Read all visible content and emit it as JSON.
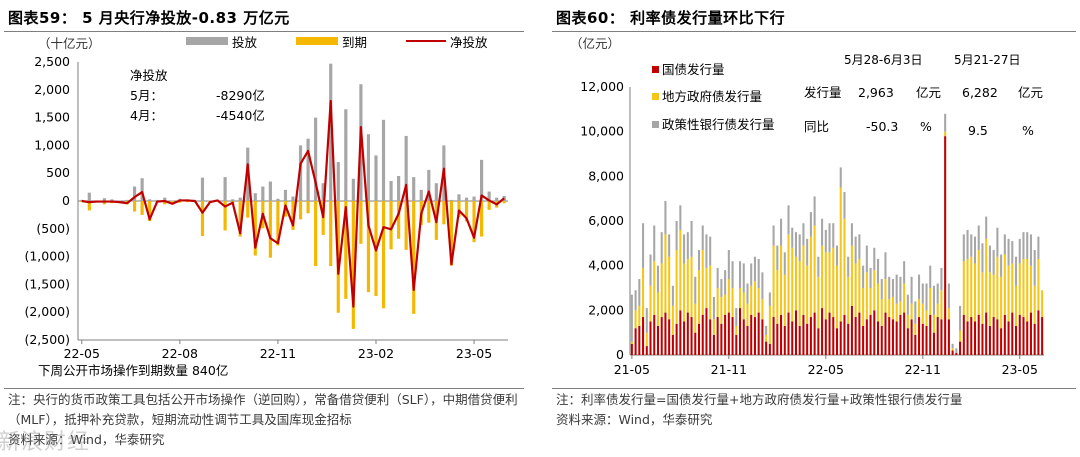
{
  "left": {
    "title": "图表59： 5 月央行净投放-0.83 万亿元",
    "unit": "（十亿元）",
    "legend": [
      {
        "label": "投放",
        "color": "#a6a6a6",
        "kind": "bar"
      },
      {
        "label": "到期",
        "color": "#f5b800",
        "kind": "bar"
      },
      {
        "label": "净投放",
        "color": "#c00000",
        "kind": "line"
      }
    ],
    "annotation": {
      "heading": "净投放",
      "rows": [
        {
          "k": "5月：",
          "v": "-8290亿"
        },
        {
          "k": "4月：",
          "v": "-4540亿"
        }
      ]
    },
    "bottom_note": "下周公开市场操作到期数量 840亿",
    "footnote": "注：央行的货币政策工具包括公开市场操作（逆回购），常备借贷便利（SLF），中期借贷便利（MLF），抵押补充贷款，短期流动性调节工具及国库现金招标",
    "source": "资料来源：Wind，华泰研究"
  },
  "right": {
    "title": "图表60： 利率债发行量环比下行",
    "unit": "（亿元）",
    "legend": [
      {
        "label": "国债发行量",
        "color": "#c00000"
      },
      {
        "label": "地方政府债发行量",
        "color": "#f5c518"
      },
      {
        "label": "政策性银行债发行量",
        "color": "#a6a6a6"
      }
    ],
    "info_table": {
      "headers": [
        "5月28-6月3日",
        "5月21-27日"
      ],
      "rows": [
        {
          "label": "发行量",
          "a": "2,963",
          "unit_a": "亿元",
          "b": "6,282",
          "unit_b": "亿元"
        },
        {
          "label": "同比",
          "a": "-50.3",
          "unit_a": "%",
          "b": "9.5",
          "unit_b": "%"
        }
      ]
    },
    "footnote": "注：利率债发行量=国债发行量+地方政府债发行量+政策性银行债发行量",
    "source": "资料来源：Wind，华泰研究"
  },
  "watermark": "新浪财经",
  "chart_data": [
    {
      "type": "bar",
      "id": "pboc-net-injection",
      "title": "图表59： 5 月央行净投放-0.83 万亿元",
      "ylabel": "（十亿元）",
      "ylim": [
        -2500,
        2500
      ],
      "yticks": [
        "2,500",
        "2,000",
        "1,500",
        "1,000",
        "500",
        "0",
        "(500)",
        "(1,000)",
        "(1,500)",
        "(2,000)",
        "(2,500)"
      ],
      "xticks": [
        "22-05",
        "22-08",
        "22-11",
        "23-02",
        "23-05"
      ],
      "x_start": "2022-05-06",
      "x_step_days": 7,
      "series": [
        {
          "name": "投放",
          "values": [
            20,
            150,
            10,
            50,
            30,
            10,
            20,
            260,
            410,
            30,
            20,
            60,
            10,
            40,
            30,
            10,
            420,
            10,
            20,
            430,
            30,
            60,
            960,
            140,
            260,
            350,
            40,
            200,
            80,
            1000,
            1120,
            1500,
            320,
            2470,
            700,
            1650,
            400,
            2100,
            1200,
            820,
            1460,
            360,
            450,
            1170,
            430,
            200,
            560,
            320,
            1000,
            20,
            120,
            60,
            80,
            740,
            170,
            60,
            90
          ]
        },
        {
          "name": "到期",
          "values": [
            -20,
            -170,
            -20,
            -60,
            -40,
            -30,
            -60,
            -190,
            -250,
            -360,
            -30,
            -60,
            -60,
            -30,
            -20,
            -10,
            -630,
            -30,
            -10,
            -530,
            -60,
            -640,
            -300,
            -980,
            -490,
            -1020,
            -800,
            -280,
            -520,
            -330,
            -220,
            -1170,
            -610,
            -1170,
            -2010,
            -1760,
            -2300,
            -770,
            -1640,
            -1710,
            -1930,
            -870,
            -680,
            -880,
            -2030,
            -430,
            -390,
            -700,
            -420,
            -1160,
            -290,
            -370,
            -740,
            -640,
            -160,
            -120,
            -40
          ]
        },
        {
          "name": "净投放",
          "values": [
            0,
            -20,
            -10,
            -10,
            -10,
            -20,
            -40,
            70,
            160,
            -330,
            -10,
            0,
            -50,
            10,
            10,
            0,
            -210,
            -20,
            10,
            -100,
            -30,
            -580,
            660,
            -840,
            -230,
            -670,
            -760,
            -80,
            -440,
            670,
            900,
            330,
            -290,
            1800,
            -1310,
            -110,
            -1900,
            1330,
            -440,
            -890,
            -470,
            -510,
            -230,
            290,
            -1600,
            -230,
            170,
            -380,
            580,
            -1140,
            -170,
            -310,
            -660,
            100,
            10,
            -60,
            50
          ]
        }
      ]
    },
    {
      "type": "bar",
      "id": "rate-bond-issuance",
      "title": "图表60： 利率债发行量环比下行",
      "ylabel": "（亿元）",
      "ylim": [
        0,
        12000
      ],
      "yticks": [
        "12,000",
        "10,000",
        "8,000",
        "6,000",
        "4,000",
        "2,000",
        "0"
      ],
      "xticks": [
        "21-05",
        "21-11",
        "22-05",
        "22-11",
        "23-05"
      ],
      "x_start": "2021-05-07",
      "x_step_days": 7,
      "stacked": true,
      "series": [
        {
          "name": "国债发行量",
          "values": [
            500,
            1200,
            1300,
            1700,
            400,
            1500,
            1800,
            1300,
            1700,
            1900,
            1600,
            900,
            1400,
            2000,
            1500,
            1900,
            1700,
            1000,
            1400,
            1800,
            2100,
            1600,
            900,
            1700,
            1400,
            1800,
            1900,
            1700,
            900,
            2100,
            1600,
            1300,
            1800,
            1700,
            1900,
            1600,
            600,
            500,
            1700,
            1400,
            1800,
            1300,
            1900,
            1500,
            2000,
            1300,
            1800,
            1400,
            1700,
            1900,
            1200,
            2100,
            1600,
            1900,
            1700,
            1200,
            1500,
            1800,
            1400,
            2200,
            1700,
            1900,
            1300,
            1600,
            1800,
            2000,
            1500,
            1300,
            1900,
            1700,
            1600,
            1500,
            1800,
            1900,
            1200,
            1600,
            900,
            1700,
            1400,
            1300,
            1800,
            1000,
            1700,
            1600,
            9800,
            1600,
            200,
            100,
            600,
            1800,
            1500,
            1700,
            1500,
            1800,
            1400,
            1900,
            1300,
            1700,
            1600,
            1200,
            1800,
            1500,
            1900,
            1300,
            1800,
            1700,
            1500,
            1900,
            1400,
            2000,
            1700
          ]
        },
        {
          "name": "地方政府债发行量",
          "values": [
            100,
            800,
            900,
            2200,
            600,
            1600,
            2400,
            1500,
            2400,
            3500,
            2800,
            1300,
            3300,
            3600,
            2600,
            2400,
            2700,
            1300,
            2400,
            2900,
            1800,
            2400,
            700,
            1300,
            1200,
            900,
            1500,
            1300,
            400,
            900,
            1200,
            1000,
            1300,
            1600,
            1100,
            900,
            300,
            1700,
            3200,
            2400,
            3100,
            2300,
            3500,
            3300,
            2400,
            2900,
            3100,
            2600,
            3600,
            3900,
            2300,
            2800,
            3000,
            2700,
            3100,
            2800,
            6000,
            4300,
            2100,
            2700,
            2400,
            2400,
            1700,
            2100,
            1200,
            1800,
            1700,
            1200,
            1500,
            800,
            1000,
            800,
            600,
            1300,
            600,
            700,
            500,
            800,
            900,
            700,
            1200,
            800,
            600,
            1300,
            200,
            500,
            100,
            0,
            500,
            2400,
            2800,
            2700,
            2600,
            2900,
            2300,
            3300,
            2400,
            1900,
            2800,
            2300,
            2700,
            2500,
            2200,
            1800,
            2300,
            2600,
            2800,
            2100,
            1700,
            2300,
            1200
          ]
        },
        {
          "name": "政策性银行债发行量",
          "values": [
            2100,
            900,
            1200,
            2000,
            1100,
            1400,
            1600,
            1200,
            1400,
            1500,
            1000,
            900,
            1300,
            1100,
            1300,
            1200,
            1600,
            1200,
            900,
            1100,
            1500,
            1300,
            1000,
            900,
            800,
            1100,
            1300,
            1200,
            800,
            1200,
            1300,
            900,
            1000,
            1100,
            1300,
            1200,
            400,
            600,
            900,
            1100,
            1200,
            1000,
            1300,
            900,
            1100,
            1200,
            1000,
            1200,
            1100,
            1300,
            900,
            1200,
            1000,
            1300,
            1100,
            900,
            900,
            1200,
            900,
            1000,
            1200,
            1100,
            1000,
            1200,
            900,
            1000,
            1100,
            900,
            1200,
            1000,
            800,
            1300,
            1100,
            1000,
            900,
            1200,
            1000,
            1100,
            900,
            1200,
            1000,
            1300,
            900,
            1000,
            800,
            1100,
            200,
            200,
            1100,
            1200,
            1300,
            1000,
            1200,
            1100,
            1300,
            1000,
            1200,
            1100,
            1300,
            1000,
            900,
            1200,
            1000,
            1300,
            1100,
            1200,
            1200,
            1400,
            1600,
            1000,
            0
          ]
        }
      ]
    }
  ]
}
